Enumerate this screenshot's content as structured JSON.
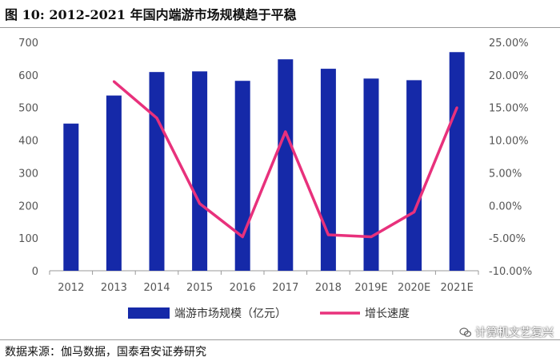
{
  "figure": {
    "title": "图  10:  2012-2021  年国内端游市场规模趋于平稳",
    "source": "数据来源：伽马数据，国泰君安证券研究",
    "watermark": "计算机文艺复兴"
  },
  "colors": {
    "bar": "#1529a8",
    "line": "#e8317c",
    "axis": "#999999",
    "text": "#555555"
  },
  "chart_data": {
    "type": "bar",
    "categories": [
      "2012",
      "2013",
      "2014",
      "2015",
      "2016",
      "2017",
      "2018",
      "2019E",
      "2020E",
      "2021E"
    ],
    "series": [
      {
        "name": "端游市场规模（亿元）",
        "type": "bar",
        "axis": "left",
        "values": [
          451,
          537,
          609,
          611,
          582,
          648,
          619,
          589,
          584,
          670
        ]
      },
      {
        "name": "增长速度",
        "type": "line",
        "axis": "right",
        "values": [
          null,
          19.0,
          13.4,
          0.3,
          -4.8,
          11.3,
          -4.5,
          -4.8,
          -1.0,
          15.0
        ]
      }
    ],
    "y_left": {
      "lim": [
        0,
        700
      ],
      "ticks": [
        "0",
        "100",
        "200",
        "300",
        "400",
        "500",
        "600",
        "700"
      ]
    },
    "y_right": {
      "lim": [
        -10,
        25
      ],
      "ticks": [
        "-10.00%",
        "-5.00%",
        "0.00%",
        "5.00%",
        "10.00%",
        "15.00%",
        "20.00%",
        "25.00%"
      ]
    },
    "legend": "bottom"
  }
}
